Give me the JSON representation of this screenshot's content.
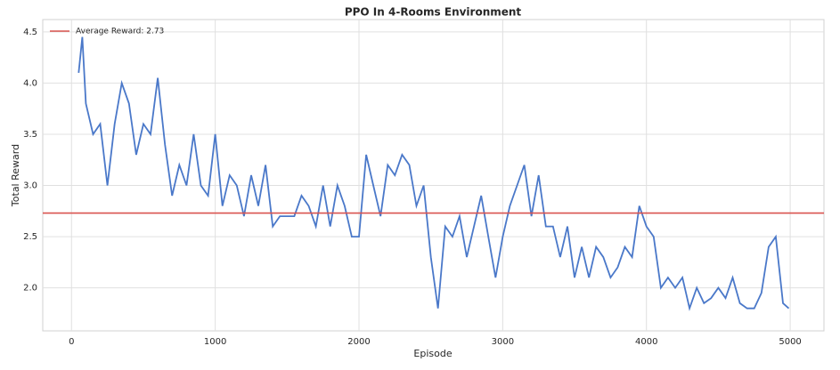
{
  "chart_data": {
    "type": "line",
    "title": "PPO In 4-Rooms Environment",
    "xlabel": "Episode",
    "ylabel": "Total Reward",
    "x": [
      50,
      75,
      100,
      150,
      200,
      250,
      300,
      350,
      400,
      450,
      500,
      550,
      600,
      650,
      700,
      750,
      800,
      850,
      900,
      950,
      1000,
      1050,
      1100,
      1150,
      1200,
      1250,
      1300,
      1350,
      1400,
      1450,
      1500,
      1550,
      1600,
      1650,
      1700,
      1750,
      1800,
      1850,
      1900,
      1950,
      2000,
      2050,
      2100,
      2150,
      2200,
      2250,
      2300,
      2350,
      2400,
      2450,
      2500,
      2550,
      2600,
      2650,
      2700,
      2750,
      2800,
      2850,
      2900,
      2950,
      3000,
      3050,
      3100,
      3150,
      3200,
      3250,
      3300,
      3350,
      3400,
      3450,
      3500,
      3550,
      3600,
      3650,
      3700,
      3750,
      3800,
      3850,
      3900,
      3950,
      4000,
      4050,
      4100,
      4150,
      4200,
      4250,
      4300,
      4350,
      4400,
      4450,
      4500,
      4550,
      4600,
      4650,
      4700,
      4750,
      4800,
      4850,
      4900,
      4950,
      4990
    ],
    "series": [
      {
        "color": "#4a78c9",
        "values": [
          4.1,
          4.45,
          3.8,
          3.5,
          3.6,
          3.0,
          3.6,
          4.0,
          3.8,
          3.3,
          3.6,
          3.5,
          4.05,
          3.4,
          2.9,
          3.2,
          3.0,
          3.5,
          3.0,
          2.9,
          3.5,
          2.8,
          3.1,
          3.0,
          2.7,
          3.1,
          2.8,
          3.2,
          2.6,
          2.7,
          2.7,
          2.7,
          2.9,
          2.8,
          2.6,
          3.0,
          2.6,
          3.0,
          2.8,
          2.5,
          2.5,
          3.3,
          3.0,
          2.7,
          3.2,
          3.1,
          3.3,
          3.2,
          2.8,
          3.0,
          2.3,
          1.8,
          2.6,
          2.5,
          2.7,
          2.3,
          2.6,
          2.9,
          2.5,
          2.1,
          2.5,
          2.8,
          3.0,
          3.2,
          2.7,
          3.1,
          2.6,
          2.6,
          2.3,
          2.6,
          2.1,
          2.4,
          2.1,
          2.4,
          2.3,
          2.1,
          2.2,
          2.4,
          2.3,
          2.8,
          2.6,
          2.5,
          2.0,
          2.1,
          2.0,
          2.1,
          1.8,
          2.0,
          1.85,
          1.9,
          2.0,
          1.9,
          2.1,
          1.85,
          1.8,
          1.8,
          1.95,
          2.4,
          2.5,
          1.85,
          1.8
        ]
      }
    ],
    "hline": {
      "name": "Average Reward: 2.73",
      "value": 2.73,
      "color": "#d9534f"
    },
    "xlim": [
      -200,
      5235
    ],
    "ylim": [
      1.58,
      4.62
    ],
    "xticks": [
      0,
      1000,
      2000,
      3000,
      4000,
      5000
    ],
    "yticks": [
      {
        "value": 2.0,
        "label": "2.0"
      },
      {
        "value": 2.5,
        "label": "2.5"
      },
      {
        "value": 3.0,
        "label": "3.0"
      },
      {
        "value": 3.5,
        "label": "3.5"
      },
      {
        "value": 4.0,
        "label": "4.0"
      },
      {
        "value": 4.5,
        "label": "4.5"
      }
    ],
    "grid": true,
    "legend": "upper left"
  }
}
